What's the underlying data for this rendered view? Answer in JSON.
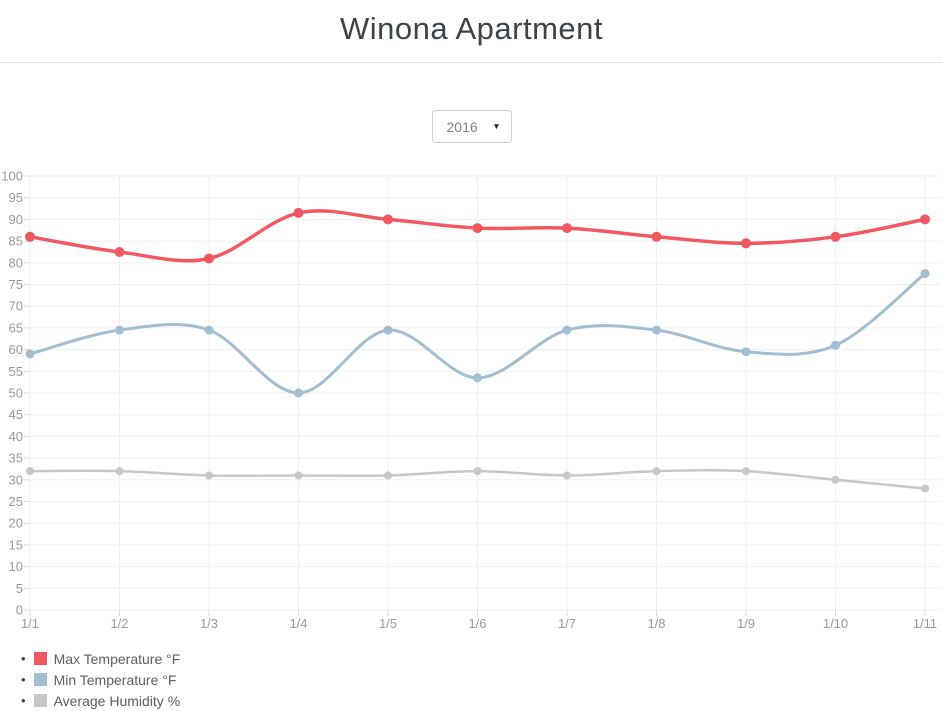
{
  "page": {
    "title": "Winona Apartment"
  },
  "controls": {
    "year_selected": "2016",
    "year_options": [
      "2016"
    ],
    "dropdown_arrow": "▼"
  },
  "chart_data": {
    "type": "line",
    "title": "",
    "xlabel": "",
    "ylabel": "",
    "x": [
      "1/1",
      "1/2",
      "1/3",
      "1/4",
      "1/5",
      "1/6",
      "1/7",
      "1/8",
      "1/9",
      "1/10",
      "1/11"
    ],
    "ylim": [
      0,
      100
    ],
    "ytick_step": 5,
    "grid": true,
    "legend_position": "bottom-left",
    "axis_label_color": "#999999",
    "grid_color": "#f0f0f0",
    "tick_color": "#dcdcdc",
    "series": [
      {
        "name": "Max Temperature °F",
        "color": "#f1585f",
        "line_width": 3.5,
        "point_radius": 5,
        "values": [
          86,
          82.5,
          81,
          91.5,
          90,
          88,
          88,
          86,
          84.5,
          86,
          90
        ]
      },
      {
        "name": "Min Temperature °F",
        "color": "#a1bed3",
        "line_width": 3,
        "point_radius": 4.5,
        "values": [
          59,
          64.5,
          64.5,
          50,
          64.5,
          53.5,
          64.5,
          64.5,
          59.5,
          61,
          77.5
        ]
      },
      {
        "name": "Average Humidity %",
        "color": "#c7c7c7",
        "line_width": 2.5,
        "point_radius": 4,
        "values": [
          32,
          32,
          31,
          31,
          31,
          32,
          31,
          32,
          32,
          30,
          28
        ]
      }
    ]
  }
}
